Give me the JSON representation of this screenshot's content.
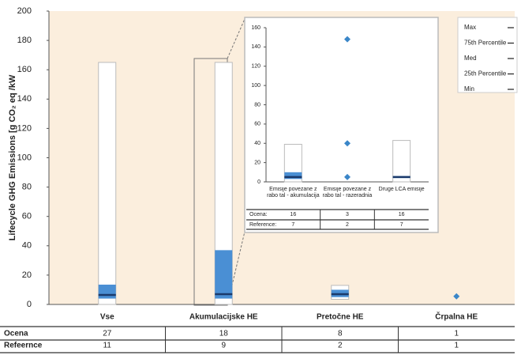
{
  "chart_data": [
    {
      "type": "box",
      "y_label": "Lifecycle GHG Emissions [g CO₂ eq /kW",
      "categories": [
        "Vse",
        "Akumulacijske HE",
        "Pretočne HE",
        "Črpalna HE"
      ],
      "boxes": [
        {
          "min": 0,
          "q1": 4,
          "median": 6.5,
          "q3": 13.5,
          "max": 165
        },
        {
          "min": 0,
          "q1": 4,
          "median": 7,
          "q3": 37,
          "max": 165
        },
        {
          "min": 3.5,
          "q1": 5,
          "median": 7,
          "q3": 10,
          "max": 13
        },
        null
      ],
      "points": [
        [],
        [],
        [],
        [
          5.5
        ]
      ],
      "ylim": [
        0,
        200
      ],
      "yticks": [
        0,
        20,
        40,
        60,
        80,
        100,
        120,
        140,
        160,
        180,
        200
      ],
      "box_color": "#4a8fd4",
      "median_color": "#1b3a6b",
      "point_color": "#3a86c8",
      "background": "#fbeedd",
      "table": {
        "row_labels": [
          "Ocena",
          "Refeernce"
        ],
        "rows": [
          [
            27,
            18,
            8,
            1
          ],
          [
            11,
            9,
            2,
            1
          ]
        ]
      },
      "legend": [
        "Max",
        "75th Percentile",
        "Med",
        "25th Percentile",
        "Min"
      ],
      "legend_position": "top-right"
    },
    {
      "type": "box",
      "categories": [
        "Emisije povezane z rabo tal - akumulacija",
        "Emisije povezane z rabo tal - razeradnia",
        "Druge LCA emisije"
      ],
      "boxes": [
        {
          "min": 0,
          "q1": 3,
          "median": 5,
          "q3": 10,
          "max": 39
        },
        null,
        {
          "min": 0,
          "q1": 4,
          "median": 5,
          "q3": 6,
          "max": 43
        }
      ],
      "points": [
        [],
        [
          5,
          40,
          148
        ],
        []
      ],
      "ylim": [
        0,
        160
      ],
      "yticks": [
        0,
        20,
        40,
        60,
        80,
        100,
        120,
        140,
        160
      ],
      "box_color": "#4a8fd4",
      "median_color": "#1b3a6b",
      "point_color": "#3a86c8",
      "background": "#ffffff",
      "table": {
        "row_labels": [
          "Ocena:",
          "Reference:"
        ],
        "rows": [
          [
            16,
            3,
            16
          ],
          [
            7,
            2,
            7
          ]
        ]
      }
    }
  ]
}
